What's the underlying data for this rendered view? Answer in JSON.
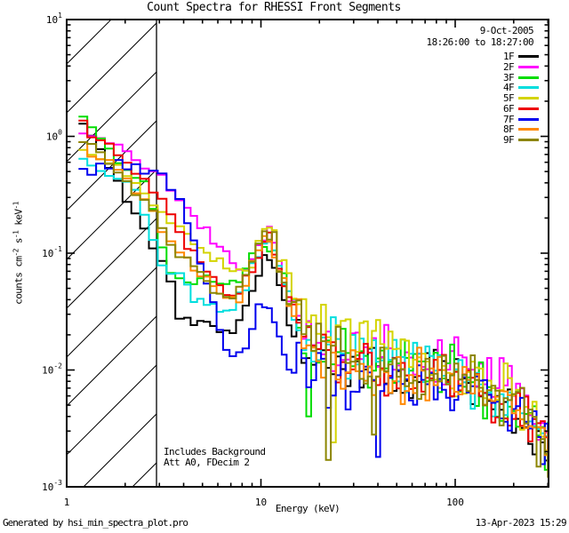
{
  "header": {
    "title": "Count Spectra for RHESSI Front Segments"
  },
  "annotations": {
    "date": "9-Oct-2005",
    "time_range": "18:26:00 to 18:27:00",
    "note_line1": "Includes Background",
    "note_line2": "Att A0, FDecim 2"
  },
  "footer": {
    "generated_by": "Generated by hsi_min_spectra_plot.pro",
    "timestamp": "13-Apr-2023 15:29"
  },
  "chart_data": {
    "type": "line",
    "mode": "log-log-staircase-spectra",
    "title": "Count Spectra for RHESSI Front Segments",
    "xlabel": "Energy (keV)",
    "ylabel_parts": [
      {
        "t": "counts cm"
      },
      {
        "t": "-2",
        "sup": true
      },
      {
        "t": " s"
      },
      {
        "t": "-1",
        "sup": true
      },
      {
        "t": " keV"
      },
      {
        "t": "-1",
        "sup": true
      }
    ],
    "xaxis": {
      "scale": "log",
      "min": 1,
      "max": 302,
      "major_ticks": [
        1,
        10,
        100
      ],
      "tick_labels": [
        "1",
        "10",
        "100"
      ]
    },
    "yaxis": {
      "scale": "log",
      "min": 0.001,
      "max": 10,
      "tick_exponents": [
        1,
        0,
        -1,
        -2,
        -3
      ],
      "tick_base": "10"
    },
    "hatch_region": {
      "from_energy": 1.0,
      "to_energy": 2.9,
      "style": "diagonal-hatch"
    },
    "legend_position": "top-right",
    "series": [
      {
        "name": "1F",
        "color": "#000000",
        "seed": 101,
        "anchors": [
          [
            1.15,
            1.29
          ],
          [
            1.4,
            0.78
          ],
          [
            1.8,
            0.37
          ],
          [
            2.3,
            0.195
          ],
          [
            2.6,
            0.13
          ],
          [
            2.9,
            0.085
          ],
          [
            3.2,
            0.075
          ],
          [
            3.35,
            0.033
          ],
          [
            4.5,
            0.027
          ],
          [
            6,
            0.022
          ],
          [
            7,
            0.02
          ],
          [
            8,
            0.035
          ],
          [
            9,
            0.06
          ],
          [
            9.7,
            0.085
          ],
          [
            10.4,
            0.1
          ],
          [
            11.5,
            0.065
          ],
          [
            12.5,
            0.04
          ],
          [
            14,
            0.022
          ],
          [
            17,
            0.013
          ],
          [
            22,
            0.012
          ],
          [
            30,
            0.01
          ],
          [
            45,
            0.009
          ],
          [
            60,
            0.0085
          ],
          [
            80,
            0.009
          ],
          [
            100,
            0.0085
          ],
          [
            130,
            0.007
          ],
          [
            170,
            0.005
          ],
          [
            220,
            0.0035
          ],
          [
            300,
            0.002
          ]
        ],
        "dips": []
      },
      {
        "name": "2F",
        "color": "#ff00ff",
        "seed": 202,
        "anchors": [
          [
            1.15,
            1.08
          ],
          [
            1.45,
            1.0
          ],
          [
            1.8,
            0.82
          ],
          [
            2.2,
            0.62
          ],
          [
            2.7,
            0.48
          ],
          [
            3.2,
            0.38
          ],
          [
            4,
            0.23
          ],
          [
            5,
            0.155
          ],
          [
            6,
            0.105
          ],
          [
            7,
            0.078
          ],
          [
            8,
            0.062
          ],
          [
            9,
            0.085
          ],
          [
            10,
            0.13
          ],
          [
            10.8,
            0.155
          ],
          [
            12,
            0.08
          ],
          [
            13.5,
            0.045
          ],
          [
            15,
            0.032
          ],
          [
            18,
            0.02
          ],
          [
            22,
            0.016
          ],
          [
            30,
            0.014
          ],
          [
            45,
            0.012
          ],
          [
            60,
            0.011
          ],
          [
            80,
            0.0105
          ],
          [
            100,
            0.0105
          ],
          [
            130,
            0.009
          ],
          [
            160,
            0.0085
          ],
          [
            200,
            0.008
          ],
          [
            250,
            0.005
          ],
          [
            300,
            0.003
          ]
        ],
        "dips": []
      },
      {
        "name": "3F",
        "color": "#00dd00",
        "seed": 303,
        "anchors": [
          [
            1.15,
            1.38
          ],
          [
            1.45,
            1.0
          ],
          [
            1.7,
            0.62
          ],
          [
            2.1,
            0.46
          ],
          [
            2.5,
            0.36
          ],
          [
            2.8,
            0.17
          ],
          [
            3.3,
            0.06
          ],
          [
            4,
            0.055
          ],
          [
            5,
            0.06
          ],
          [
            6.5,
            0.05
          ],
          [
            7.5,
            0.055
          ],
          [
            8.5,
            0.09
          ],
          [
            9.7,
            0.12
          ],
          [
            10.5,
            0.13
          ],
          [
            11.5,
            0.09
          ],
          [
            13,
            0.05
          ],
          [
            15,
            0.028
          ],
          [
            18,
            0.016
          ],
          [
            22,
            0.014
          ],
          [
            30,
            0.012
          ],
          [
            45,
            0.01
          ],
          [
            60,
            0.0095
          ],
          [
            80,
            0.009
          ],
          [
            100,
            0.0085
          ],
          [
            130,
            0.007
          ],
          [
            170,
            0.005
          ],
          [
            220,
            0.004
          ],
          [
            300,
            0.0022
          ]
        ],
        "dips": [
          [
            17,
            0.004
          ]
        ]
      },
      {
        "name": "4F",
        "color": "#00dede",
        "seed": 404,
        "anchors": [
          [
            1.15,
            0.65
          ],
          [
            1.4,
            0.52
          ],
          [
            1.8,
            0.42
          ],
          [
            2.2,
            0.33
          ],
          [
            2.6,
            0.14
          ],
          [
            3,
            0.07
          ],
          [
            3.8,
            0.065
          ],
          [
            4.3,
            0.038
          ],
          [
            5.5,
            0.035
          ],
          [
            7,
            0.03
          ],
          [
            8,
            0.055
          ],
          [
            9,
            0.09
          ],
          [
            10,
            0.13
          ],
          [
            10.7,
            0.14
          ],
          [
            12,
            0.075
          ],
          [
            13.5,
            0.04
          ],
          [
            15,
            0.028
          ],
          [
            18,
            0.017
          ],
          [
            22,
            0.015
          ],
          [
            30,
            0.013
          ],
          [
            45,
            0.011
          ],
          [
            60,
            0.01
          ],
          [
            80,
            0.009
          ],
          [
            100,
            0.0085
          ],
          [
            130,
            0.007
          ],
          [
            170,
            0.0055
          ],
          [
            220,
            0.0045
          ],
          [
            300,
            0.0025
          ]
        ],
        "dips": []
      },
      {
        "name": "5F",
        "color": "#d4d400",
        "seed": 505,
        "anchors": [
          [
            1.15,
            0.77
          ],
          [
            1.5,
            0.62
          ],
          [
            2,
            0.48
          ],
          [
            2.7,
            0.25
          ],
          [
            3.5,
            0.17
          ],
          [
            4.5,
            0.12
          ],
          [
            5.5,
            0.088
          ],
          [
            7,
            0.07
          ],
          [
            8,
            0.068
          ],
          [
            9,
            0.1
          ],
          [
            10,
            0.16
          ],
          [
            10.6,
            0.19
          ],
          [
            12,
            0.1
          ],
          [
            14,
            0.05
          ],
          [
            16,
            0.032
          ],
          [
            19,
            0.024
          ],
          [
            24,
            0.021
          ],
          [
            30,
            0.019
          ],
          [
            40,
            0.017
          ],
          [
            55,
            0.015
          ],
          [
            70,
            0.012
          ],
          [
            90,
            0.01
          ],
          [
            110,
            0.009
          ],
          [
            140,
            0.0075
          ],
          [
            180,
            0.0065
          ],
          [
            220,
            0.005
          ],
          [
            260,
            0.0035
          ],
          [
            300,
            0.0022
          ]
        ],
        "dips": [
          [
            23,
            0.0024
          ]
        ]
      },
      {
        "name": "6F",
        "color": "#ee0000",
        "seed": 606,
        "anchors": [
          [
            1.15,
            1.22
          ],
          [
            1.4,
            0.95
          ],
          [
            1.7,
            0.75
          ],
          [
            2,
            0.55
          ],
          [
            2.4,
            0.42
          ],
          [
            2.9,
            0.28
          ],
          [
            3.4,
            0.18
          ],
          [
            4,
            0.12
          ],
          [
            5,
            0.075
          ],
          [
            6,
            0.05
          ],
          [
            7,
            0.042
          ],
          [
            8,
            0.055
          ],
          [
            9,
            0.09
          ],
          [
            10,
            0.14
          ],
          [
            10.6,
            0.16
          ],
          [
            12,
            0.07
          ],
          [
            14,
            0.035
          ],
          [
            17,
            0.02
          ],
          [
            22,
            0.013
          ],
          [
            30,
            0.01
          ],
          [
            45,
            0.009
          ],
          [
            60,
            0.0085
          ],
          [
            80,
            0.0085
          ],
          [
            100,
            0.0085
          ],
          [
            130,
            0.007
          ],
          [
            170,
            0.0055
          ],
          [
            220,
            0.004
          ],
          [
            300,
            0.002
          ]
        ],
        "dips": []
      },
      {
        "name": "7F",
        "color": "#0000ee",
        "seed": 707,
        "anchors": [
          [
            1.15,
            0.5
          ],
          [
            1.4,
            0.55
          ],
          [
            2,
            0.56
          ],
          [
            2.5,
            0.52
          ],
          [
            3,
            0.44
          ],
          [
            3.5,
            0.3
          ],
          [
            4.2,
            0.15
          ],
          [
            4.8,
            0.075
          ],
          [
            5.5,
            0.035
          ],
          [
            6.2,
            0.016
          ],
          [
            7,
            0.012
          ],
          [
            7.8,
            0.016
          ],
          [
            8.7,
            0.025
          ],
          [
            9.6,
            0.035
          ],
          [
            10.5,
            0.042
          ],
          [
            11.5,
            0.025
          ],
          [
            12.6,
            0.011
          ],
          [
            14,
            0.012
          ],
          [
            17,
            0.01
          ],
          [
            22,
            0.009
          ],
          [
            30,
            0.008
          ],
          [
            45,
            0.0075
          ],
          [
            60,
            0.0075
          ],
          [
            80,
            0.008
          ],
          [
            100,
            0.008
          ],
          [
            130,
            0.0065
          ],
          [
            170,
            0.005
          ],
          [
            220,
            0.004
          ],
          [
            300,
            0.002
          ]
        ],
        "dips": [
          [
            39,
            0.0018
          ]
        ]
      },
      {
        "name": "8F",
        "color": "#ff8800",
        "seed": 808,
        "anchors": [
          [
            1.15,
            0.8
          ],
          [
            1.45,
            0.66
          ],
          [
            1.8,
            0.48
          ],
          [
            2.2,
            0.34
          ],
          [
            2.7,
            0.22
          ],
          [
            3.2,
            0.13
          ],
          [
            4,
            0.09
          ],
          [
            5,
            0.06
          ],
          [
            6,
            0.045
          ],
          [
            7,
            0.04
          ],
          [
            8,
            0.055
          ],
          [
            9,
            0.09
          ],
          [
            10,
            0.13
          ],
          [
            10.6,
            0.14
          ],
          [
            12,
            0.07
          ],
          [
            14,
            0.035
          ],
          [
            17,
            0.018
          ],
          [
            22,
            0.013
          ],
          [
            30,
            0.011
          ],
          [
            45,
            0.0095
          ],
          [
            60,
            0.009
          ],
          [
            80,
            0.0085
          ],
          [
            100,
            0.008
          ],
          [
            130,
            0.007
          ],
          [
            170,
            0.0055
          ],
          [
            220,
            0.0045
          ],
          [
            300,
            0.0022
          ]
        ],
        "dips": []
      },
      {
        "name": "9F",
        "color": "#8c8500",
        "seed": 909,
        "anchors": [
          [
            1.15,
            0.85
          ],
          [
            1.5,
            0.68
          ],
          [
            2,
            0.42
          ],
          [
            2.4,
            0.28
          ],
          [
            2.8,
            0.19
          ],
          [
            3.2,
            0.11
          ],
          [
            4,
            0.085
          ],
          [
            5,
            0.055
          ],
          [
            6.5,
            0.04
          ],
          [
            7.5,
            0.05
          ],
          [
            8.5,
            0.08
          ],
          [
            9.6,
            0.14
          ],
          [
            10.4,
            0.2
          ],
          [
            11.3,
            0.13
          ],
          [
            12.5,
            0.06
          ],
          [
            14,
            0.035
          ],
          [
            17,
            0.018
          ],
          [
            22,
            0.014
          ],
          [
            30,
            0.012
          ],
          [
            45,
            0.01
          ],
          [
            60,
            0.0095
          ],
          [
            80,
            0.009
          ],
          [
            100,
            0.0085
          ],
          [
            130,
            0.0075
          ],
          [
            160,
            0.006
          ],
          [
            200,
            0.005
          ],
          [
            250,
            0.003
          ],
          [
            300,
            0.0014
          ]
        ],
        "dips": [
          [
            21,
            0.0017
          ],
          [
            37,
            0.0028
          ]
        ]
      }
    ]
  }
}
